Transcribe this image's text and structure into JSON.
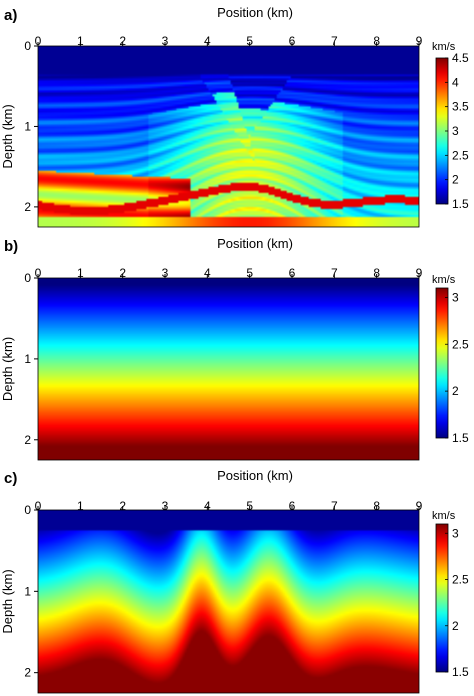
{
  "chart_data": [
    {
      "type": "heatmap",
      "panel_label": "a)",
      "xlabel": "Position (km)",
      "ylabel": "Depth (km)",
      "xlim": [
        0,
        9
      ],
      "ylim": [
        0,
        2.25
      ],
      "xticks": [
        "0",
        "1",
        "2",
        "3",
        "4",
        "5",
        "6",
        "7",
        "8",
        "9"
      ],
      "yticks": [
        {
          "v": 0,
          "label": "0"
        },
        {
          "v": 1,
          "label": "1"
        },
        {
          "v": 2,
          "label": "2"
        }
      ],
      "colorbar": {
        "unit": "km/s",
        "range": [
          1.5,
          4.5
        ],
        "ticks": [
          {
            "v": 4.5,
            "label": "4.5"
          },
          {
            "v": 4,
            "label": "4"
          },
          {
            "v": 3.5,
            "label": "3.5"
          },
          {
            "v": 3,
            "label": "3"
          },
          {
            "v": 2.5,
            "label": "2.5"
          },
          {
            "v": 2,
            "label": "2"
          },
          {
            "v": 1.5,
            "label": "1.5"
          }
        ]
      },
      "colormap": "jet",
      "model": "layered-faulted"
    },
    {
      "type": "heatmap",
      "panel_label": "b)",
      "xlabel": "Position (km)",
      "ylabel": "Depth (km)",
      "xlim": [
        0,
        9
      ],
      "ylim": [
        0,
        2.25
      ],
      "xticks": [
        "0",
        "1",
        "2",
        "3",
        "4",
        "5",
        "6",
        "7",
        "8",
        "9"
      ],
      "yticks": [
        {
          "v": 0,
          "label": "0"
        },
        {
          "v": 1,
          "label": "1"
        },
        {
          "v": 2,
          "label": "2"
        }
      ],
      "colorbar": {
        "unit": "km/s",
        "range": [
          1.5,
          3.1
        ],
        "ticks": [
          {
            "v": 3,
            "label": "3"
          },
          {
            "v": 2.5,
            "label": "2.5"
          },
          {
            "v": 2,
            "label": "2"
          },
          {
            "v": 1.5,
            "label": "1.5"
          }
        ]
      },
      "colormap": "jet",
      "model": "linear-gradient"
    },
    {
      "type": "heatmap",
      "panel_label": "c)",
      "xlabel": "Position (km)",
      "ylabel": "Depth (km)",
      "xlim": [
        0,
        9
      ],
      "ylim": [
        0,
        2.25
      ],
      "xticks": [
        "0",
        "1",
        "2",
        "3",
        "4",
        "5",
        "6",
        "7",
        "8",
        "9"
      ],
      "yticks": [
        {
          "v": 0,
          "label": "0"
        },
        {
          "v": 1,
          "label": "1"
        },
        {
          "v": 2,
          "label": "2"
        }
      ],
      "colorbar": {
        "unit": "km/s",
        "range": [
          1.5,
          3.1
        ],
        "ticks": [
          {
            "v": 3,
            "label": "3"
          },
          {
            "v": 2.5,
            "label": "2.5"
          },
          {
            "v": 2,
            "label": "2"
          },
          {
            "v": 1.5,
            "label": "1.5"
          }
        ]
      },
      "colormap": "jet",
      "model": "smooth-inverted"
    }
  ]
}
